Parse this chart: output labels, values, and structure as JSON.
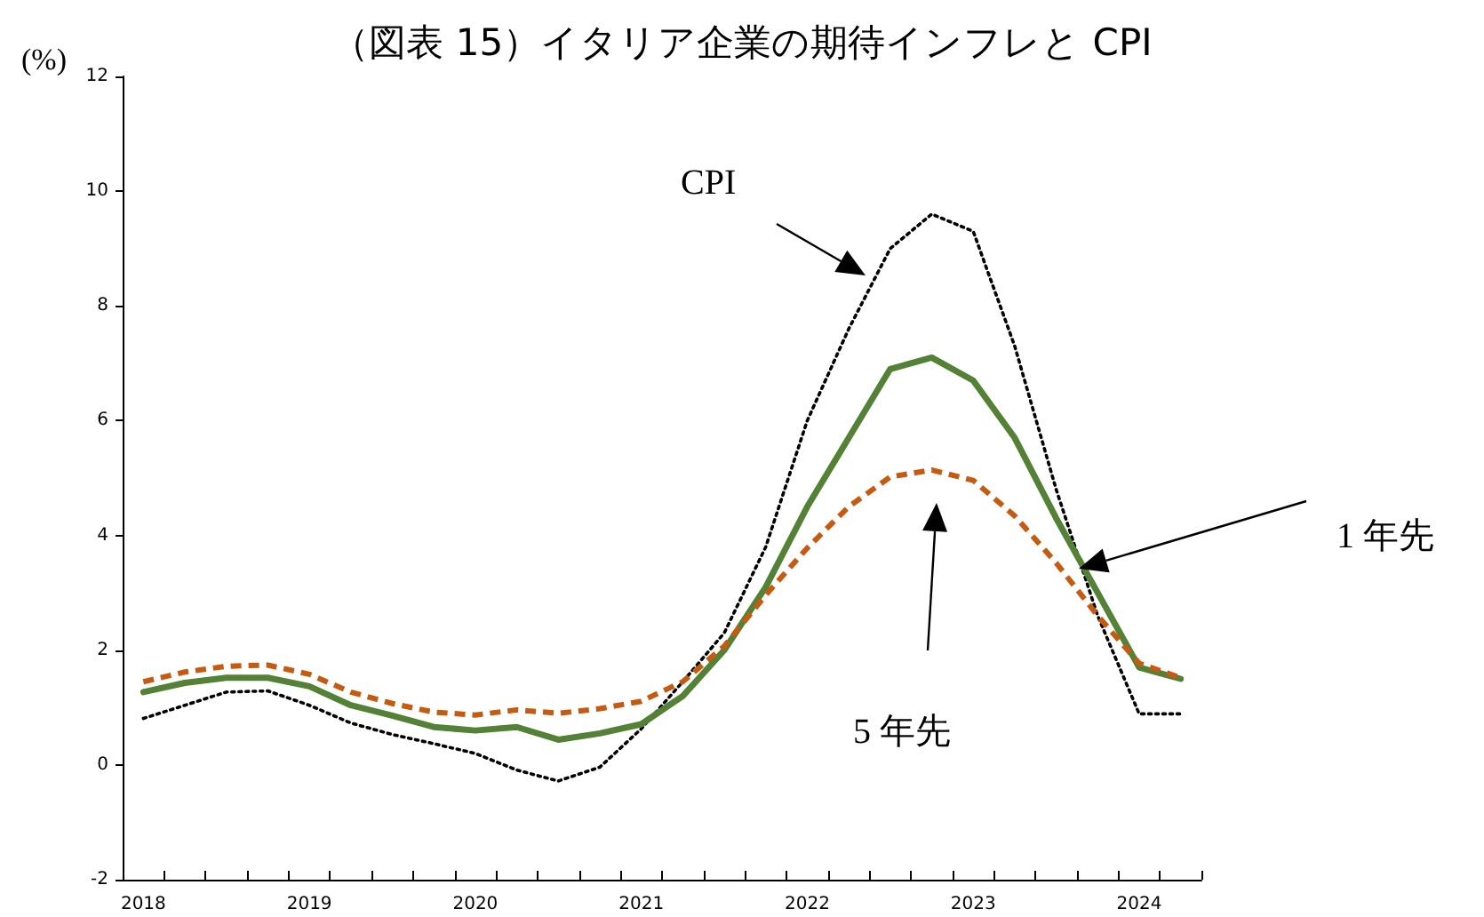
{
  "chart_data": {
    "type": "line",
    "title": "（図表 15）イタリア企業の期待インフレと CPI",
    "ylabel": "(%)",
    "categories": [
      "2018",
      null,
      null,
      null,
      "2019",
      null,
      null,
      null,
      "2020",
      null,
      null,
      null,
      "2021",
      null,
      null,
      null,
      "2022",
      null,
      null,
      null,
      "2023",
      null,
      null,
      null,
      "2024",
      null
    ],
    "series": [
      {
        "color": "#000000",
        "line_style": "dotted",
        "values": [
          0.81,
          1.04,
          1.27,
          1.29,
          1.04,
          0.73,
          0.53,
          0.37,
          0.2,
          -0.09,
          -0.28,
          -0.04,
          0.63,
          1.45,
          2.3,
          3.8,
          6.0,
          7.6,
          9.0,
          9.6,
          9.3,
          7.3,
          4.8,
          2.6,
          0.89,
          0.89
        ]
      },
      {
        "color": "#538135",
        "line_style": "solid",
        "values": [
          1.27,
          1.43,
          1.52,
          1.52,
          1.37,
          1.04,
          0.86,
          0.66,
          0.6,
          0.66,
          0.44,
          0.55,
          0.71,
          1.2,
          2.0,
          3.1,
          4.5,
          5.7,
          6.9,
          7.1,
          6.7,
          5.7,
          4.3,
          3.0,
          1.7,
          1.5
        ]
      },
      {
        "color": "#c55a11",
        "line_style": "dashed",
        "values": [
          1.45,
          1.62,
          1.72,
          1.74,
          1.58,
          1.27,
          1.07,
          0.92,
          0.87,
          0.96,
          0.9,
          0.98,
          1.11,
          1.45,
          2.07,
          2.96,
          3.78,
          4.5,
          5.02,
          5.14,
          4.96,
          4.34,
          3.52,
          2.6,
          1.77,
          1.52
        ]
      }
    ],
    "annotations": [
      "CPI",
      "1 年先",
      "5 年先"
    ],
    "ylim": [
      -2,
      12
    ],
    "yticks": [
      -2,
      0,
      2,
      4,
      6,
      8,
      10,
      12
    ],
    "grid": false,
    "marker": "none"
  }
}
